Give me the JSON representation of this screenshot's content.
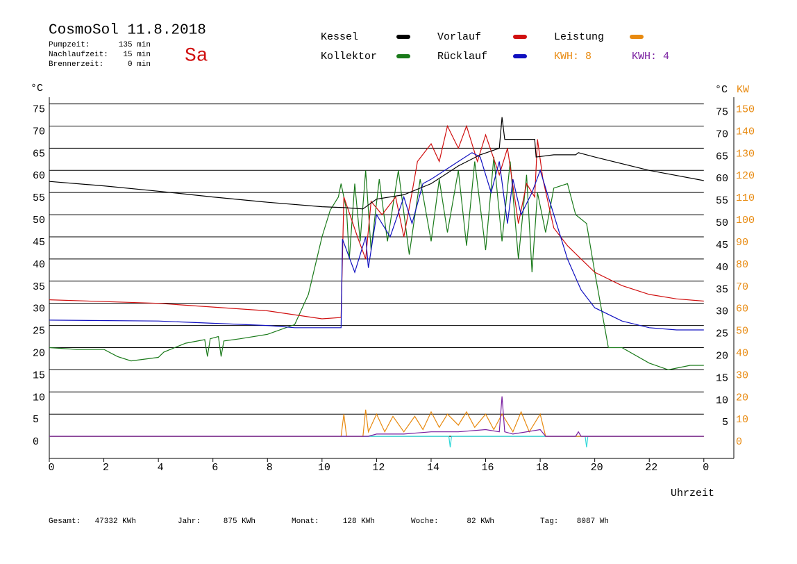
{
  "chart_data": {
    "type": "line",
    "title": "CosmoSol 11.8.2018",
    "weekday": "Sa",
    "info": [
      {
        "label": "Pumpzeit:",
        "value": "135 min"
      },
      {
        "label": "Nachlaufzeit:",
        "value": "15 min"
      },
      {
        "label": "Brennerzeit:",
        "value": "0 min"
      }
    ],
    "annotations": [
      {
        "text": "KWH: 8",
        "color": "#e88a10"
      },
      {
        "text": "KWH: 4",
        "color": "#7a1fa0"
      }
    ],
    "ylabel": "°C",
    "y2label": "°C",
    "y3label": "KW",
    "xlabel": "Uhrzeit",
    "footer": [
      {
        "label": "Gesamt:",
        "value": "47332 KWh"
      },
      {
        "label": "Jahr:",
        "value": "875 KWh"
      },
      {
        "label": "Monat:",
        "value": "128 KWh"
      },
      {
        "label": "Woche:",
        "value": "82 KWh"
      },
      {
        "label": "Tag:",
        "value": "8087 Wh"
      }
    ],
    "xlim": [
      0,
      25.1
    ],
    "xticks": [
      0,
      2,
      4,
      6,
      8,
      10,
      12,
      14,
      16,
      18,
      20,
      22,
      {
        "value": 24,
        "label": "0"
      }
    ],
    "ylim": [
      -5,
      76.5
    ],
    "yticks": [
      0,
      5,
      10,
      15,
      20,
      25,
      30,
      35,
      40,
      45,
      50,
      55,
      60,
      65,
      70,
      75
    ],
    "y2ticks": [
      5,
      10,
      15,
      20,
      25,
      30,
      35,
      40,
      45,
      50,
      55,
      60,
      65,
      70,
      75
    ],
    "y2lim": [
      -10,
      153
    ],
    "y3ticks": [
      0,
      10,
      20,
      30,
      40,
      50,
      60,
      70,
      80,
      90,
      100,
      110,
      120,
      130,
      140,
      150
    ],
    "grid": true,
    "series": [
      {
        "name": "Kessel",
        "color": "#000000",
        "x": [
          0,
          2,
          4,
          6,
          8,
          10,
          10.8,
          11.5,
          12,
          13,
          14,
          15,
          15.8,
          16.5,
          16.6,
          16.7,
          17.5,
          17.8,
          17.85,
          18.5,
          19.3,
          19.4,
          20,
          22,
          24
        ],
        "values": [
          57.5,
          56.5,
          55.3,
          54,
          52.8,
          51.8,
          51.6,
          51.3,
          53.5,
          54.5,
          57,
          61,
          63.5,
          65,
          72,
          67,
          67,
          67,
          63,
          63.5,
          63.5,
          64,
          63,
          60,
          57.7
        ]
      },
      {
        "name": "Vorlauf",
        "color": "#d01010",
        "x": [
          0,
          4,
          8,
          10,
          10.7,
          10.8,
          11.3,
          11.6,
          11.8,
          12.2,
          12.7,
          13,
          13.3,
          13.5,
          14,
          14.3,
          14.6,
          15,
          15.3,
          15.7,
          16,
          16.5,
          16.8,
          17.2,
          17.5,
          17.8,
          17.9,
          18.1,
          18.5,
          19,
          19.5,
          20,
          21,
          22,
          23,
          24
        ],
        "values": [
          30.8,
          30,
          28.3,
          26.5,
          26.8,
          54,
          45,
          40,
          53,
          50,
          54,
          45,
          55,
          62,
          66,
          62,
          70,
          65,
          70,
          62,
          68,
          59,
          65,
          48,
          57,
          54,
          67,
          58,
          47,
          43,
          40,
          37,
          34,
          32,
          31,
          30.5
        ]
      },
      {
        "name": "Leistung",
        "color": "#e88a10",
        "axis": "y2",
        "x": [
          0,
          10.7,
          10.8,
          10.9,
          11.5,
          11.6,
          11.7,
          12,
          12.3,
          12.6,
          13,
          13.4,
          13.7,
          14,
          14.3,
          14.6,
          15,
          15.3,
          15.6,
          16,
          16.3,
          16.6,
          17,
          17.3,
          17.6,
          18,
          18.2,
          24
        ],
        "values": [
          0,
          0,
          10,
          0,
          0,
          12,
          2,
          10,
          2,
          9,
          2,
          9,
          3,
          11,
          4,
          10,
          5,
          11,
          4,
          10,
          3,
          10,
          2,
          11,
          2,
          10,
          0,
          0
        ]
      },
      {
        "name": "Kollektor",
        "color": "#1a7a1a",
        "x": [
          0,
          1,
          2,
          2.5,
          3,
          4,
          4.2,
          5,
          5.7,
          5.8,
          5.9,
          6.2,
          6.3,
          6.4,
          7,
          8,
          9,
          9.5,
          10,
          10.3,
          10.6,
          10.7,
          10.9,
          11,
          11.2,
          11.4,
          11.6,
          11.8,
          12.1,
          12.4,
          12.8,
          13.2,
          13.6,
          14,
          14.3,
          14.6,
          15,
          15.3,
          15.6,
          16,
          16.3,
          16.6,
          16.9,
          17.2,
          17.5,
          17.7,
          17.9,
          18.2,
          18.5,
          19,
          19.3,
          19.7,
          20,
          20.5,
          21,
          22,
          22.7,
          23.5,
          24
        ],
        "values": [
          20,
          19.6,
          19.6,
          18,
          17,
          17.8,
          19,
          21,
          21.8,
          18,
          22,
          22.5,
          18,
          21.5,
          22,
          23,
          25.2,
          32,
          45,
          51,
          54,
          57,
          51,
          40,
          57,
          44,
          60,
          42,
          58,
          44,
          60,
          41,
          58,
          44,
          58,
          46,
          60,
          43,
          62,
          42,
          63,
          44,
          62,
          40,
          59,
          37,
          55,
          46,
          56,
          57,
          50,
          48,
          37,
          20,
          20,
          16.5,
          15,
          16,
          16
        ]
      },
      {
        "name": "Rücklauf",
        "color": "#1010c0",
        "x": [
          0,
          4,
          8,
          9,
          10.7,
          10.75,
          11.2,
          11.6,
          11.7,
          12,
          12.5,
          13,
          13.3,
          13.7,
          14,
          14.5,
          15,
          15.5,
          15.8,
          16.2,
          16.5,
          16.8,
          17,
          17.3,
          17.7,
          18,
          18.5,
          19,
          19.5,
          20,
          21,
          22,
          23,
          24
        ],
        "values": [
          26.2,
          26,
          25,
          24.5,
          24.5,
          44.5,
          37,
          45,
          38,
          50,
          45,
          54,
          48,
          57,
          58,
          60,
          62,
          64,
          63,
          55,
          62,
          48,
          58,
          50,
          55,
          60,
          50,
          40,
          33,
          29,
          26,
          24.5,
          24,
          24
        ]
      },
      {
        "color": "#7a1fa0",
        "axis": "y2",
        "x": [
          0,
          11.7,
          12,
          13,
          14,
          15,
          16,
          16.5,
          16.6,
          16.7,
          17,
          18,
          18.2,
          19.3,
          19.4,
          19.5,
          24
        ],
        "values": [
          0,
          0,
          1,
          1,
          2,
          2,
          3,
          2,
          18,
          2,
          1,
          3,
          0,
          0,
          2,
          0,
          0
        ]
      },
      {
        "color": "#30d8d8",
        "axis": "y2",
        "x": [
          0,
          14.65,
          14.7,
          14.75,
          19.65,
          19.7,
          19.75,
          24
        ],
        "values": [
          0,
          0,
          -5,
          0,
          0,
          -5,
          0,
          0
        ]
      }
    ]
  }
}
